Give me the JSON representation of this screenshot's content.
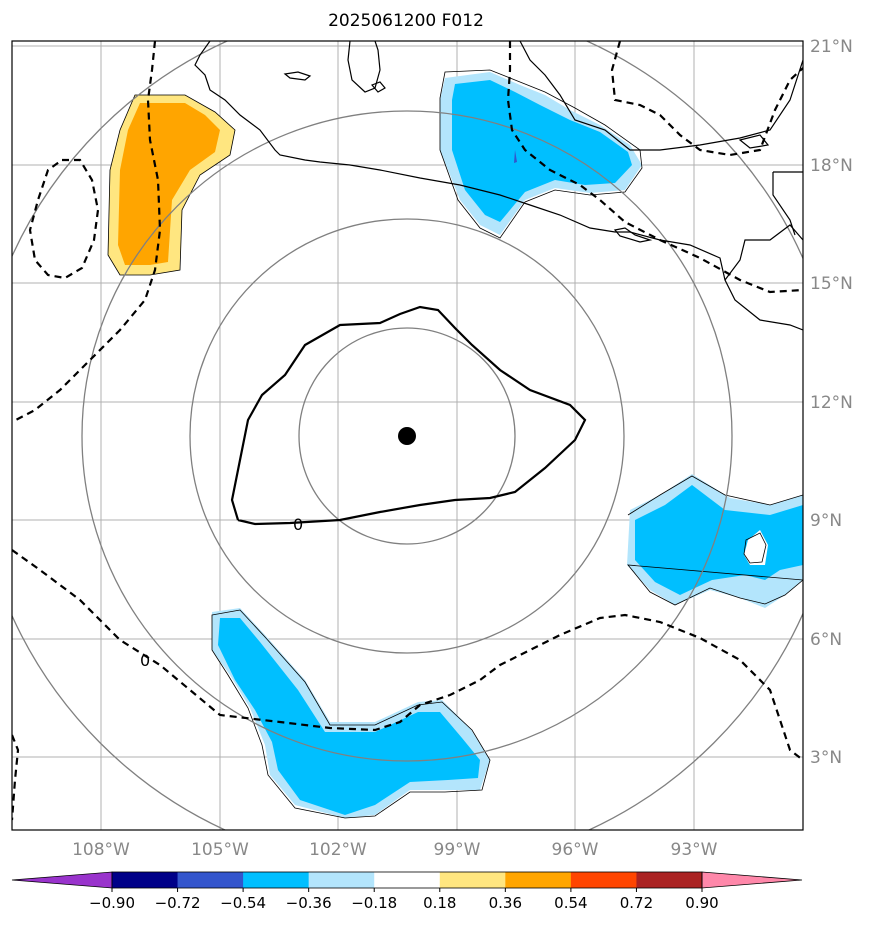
{
  "title": "2025061200 F012",
  "lat_labels": [
    "21°N",
    "18°N",
    "15°N",
    "12°N",
    "9°N",
    "6°N",
    "3°N"
  ],
  "lon_labels": [
    "108°W",
    "105°W",
    "102°W",
    "99°W",
    "96°W",
    "93°W"
  ],
  "colorbar": {
    "labels": [
      "−0.90",
      "−0.72",
      "−0.54",
      "−0.36",
      "−0.18",
      "0.18",
      "0.36",
      "0.54",
      "0.72",
      "0.90"
    ],
    "colors": [
      "#9933cc",
      "#000088",
      "#3355cc",
      "#00bfff",
      "#b3e5fc",
      "#ffffff",
      "#ffe680",
      "#ffa500",
      "#ff4500",
      "#aa2222",
      "#ff88aa"
    ]
  },
  "contour_labels": [
    "0",
    "0"
  ],
  "center_marker": "storm-center-dot",
  "chart_data": {
    "type": "map",
    "projection": "lat-lon",
    "extent": {
      "lon": [
        -110.2,
        -90.2
      ],
      "lat": [
        1.0,
        21.1
      ]
    },
    "gridlines": true,
    "range_rings": 4,
    "center": {
      "lat": 11.1,
      "lon": -100.2
    },
    "colorbar_levels": [
      -0.9,
      -0.72,
      -0.54,
      -0.36,
      -0.18,
      0.18,
      0.36,
      0.54,
      0.72,
      0.9
    ]
  }
}
